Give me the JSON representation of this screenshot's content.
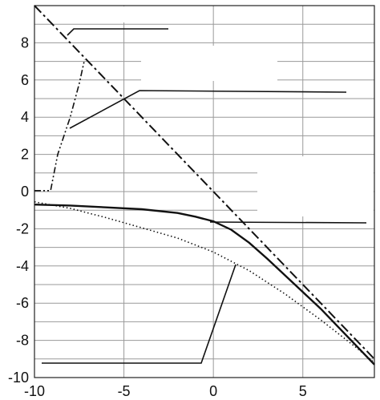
{
  "chart_data": {
    "type": "line",
    "xlim": [
      -10,
      9
    ],
    "ylim": [
      -10,
      10
    ],
    "x_ticks": [
      -10,
      -5,
      0,
      5
    ],
    "y_ticks": [
      8,
      6,
      4,
      2,
      0,
      -2,
      -4,
      -6,
      -8,
      -10
    ],
    "x_tick_labels": [
      "-10",
      "-5",
      "0",
      "5"
    ],
    "y_tick_labels": [
      "8",
      "6",
      "4",
      "2",
      "0",
      "-2",
      "-4",
      "-6",
      "-8",
      "-10"
    ],
    "grid": true,
    "legend": "none",
    "series": [
      {
        "style": "dash-dot",
        "x": [
          -10,
          -8,
          -6,
          -4,
          -2,
          0,
          2,
          4,
          6,
          8,
          9
        ],
        "y": [
          10,
          8,
          6,
          4,
          2,
          0,
          -2,
          -4,
          -6,
          -8,
          -9
        ]
      },
      {
        "style": "solid",
        "x": [
          -10,
          -8,
          -6,
          -4,
          -2,
          -1,
          0,
          1,
          2,
          3,
          4,
          5,
          6,
          7,
          8,
          9
        ],
        "y": [
          -0.7,
          -0.75,
          -0.85,
          -0.95,
          -1.15,
          -1.35,
          -1.6,
          -2.05,
          -2.75,
          -3.6,
          -4.5,
          -5.4,
          -6.3,
          -7.3,
          -8.3,
          -9.3
        ]
      },
      {
        "style": "dotted",
        "x": [
          -10,
          -8,
          -6,
          -4,
          -2,
          0,
          2,
          4,
          6,
          8,
          9
        ],
        "y": [
          -0.55,
          -0.9,
          -1.4,
          -1.95,
          -2.5,
          -3.25,
          -4.25,
          -5.5,
          -6.9,
          -8.4,
          -9.2
        ]
      },
      {
        "style": "dash-dot-dot",
        "x": [
          -10,
          -9.6,
          -9.1,
          -8.7,
          -8,
          -7.5,
          -7.2
        ],
        "y": [
          0.05,
          0.05,
          0.05,
          2,
          4,
          5.8,
          7.1
        ]
      }
    ]
  }
}
